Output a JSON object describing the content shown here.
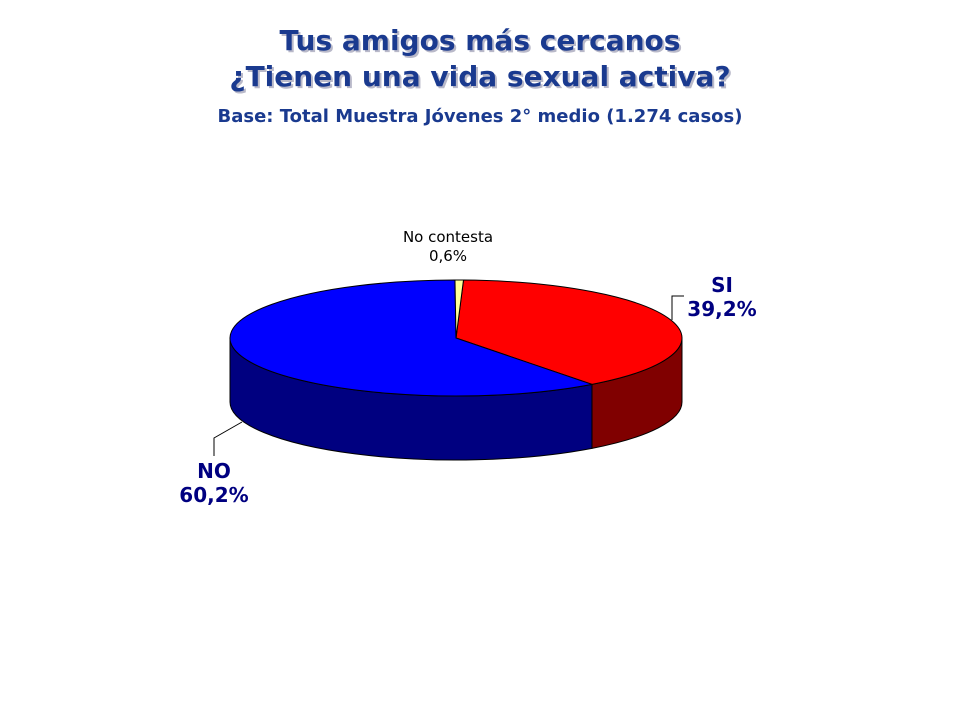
{
  "header": {
    "title_line1": "Tus amigos más cercanos",
    "title_line2": "¿Tienen una vida sexual activa?",
    "subtitle": "Base: Total Muestra Jóvenes 2° medio (1.274 casos)"
  },
  "chart_data": {
    "type": "pie",
    "style": "3d",
    "slices": [
      {
        "label": "SI",
        "value": 39.2,
        "display": "39,2%",
        "color": "#ff0000",
        "side_color": "#800000"
      },
      {
        "label": "NO",
        "value": 60.2,
        "display": "60,2%",
        "color": "#0000ff",
        "side_color": "#000080"
      },
      {
        "label": "No contesta",
        "value": 0.6,
        "display": "0,6%",
        "color": "#ffff99",
        "side_color": "#b3b36b"
      }
    ],
    "legend": "none"
  }
}
